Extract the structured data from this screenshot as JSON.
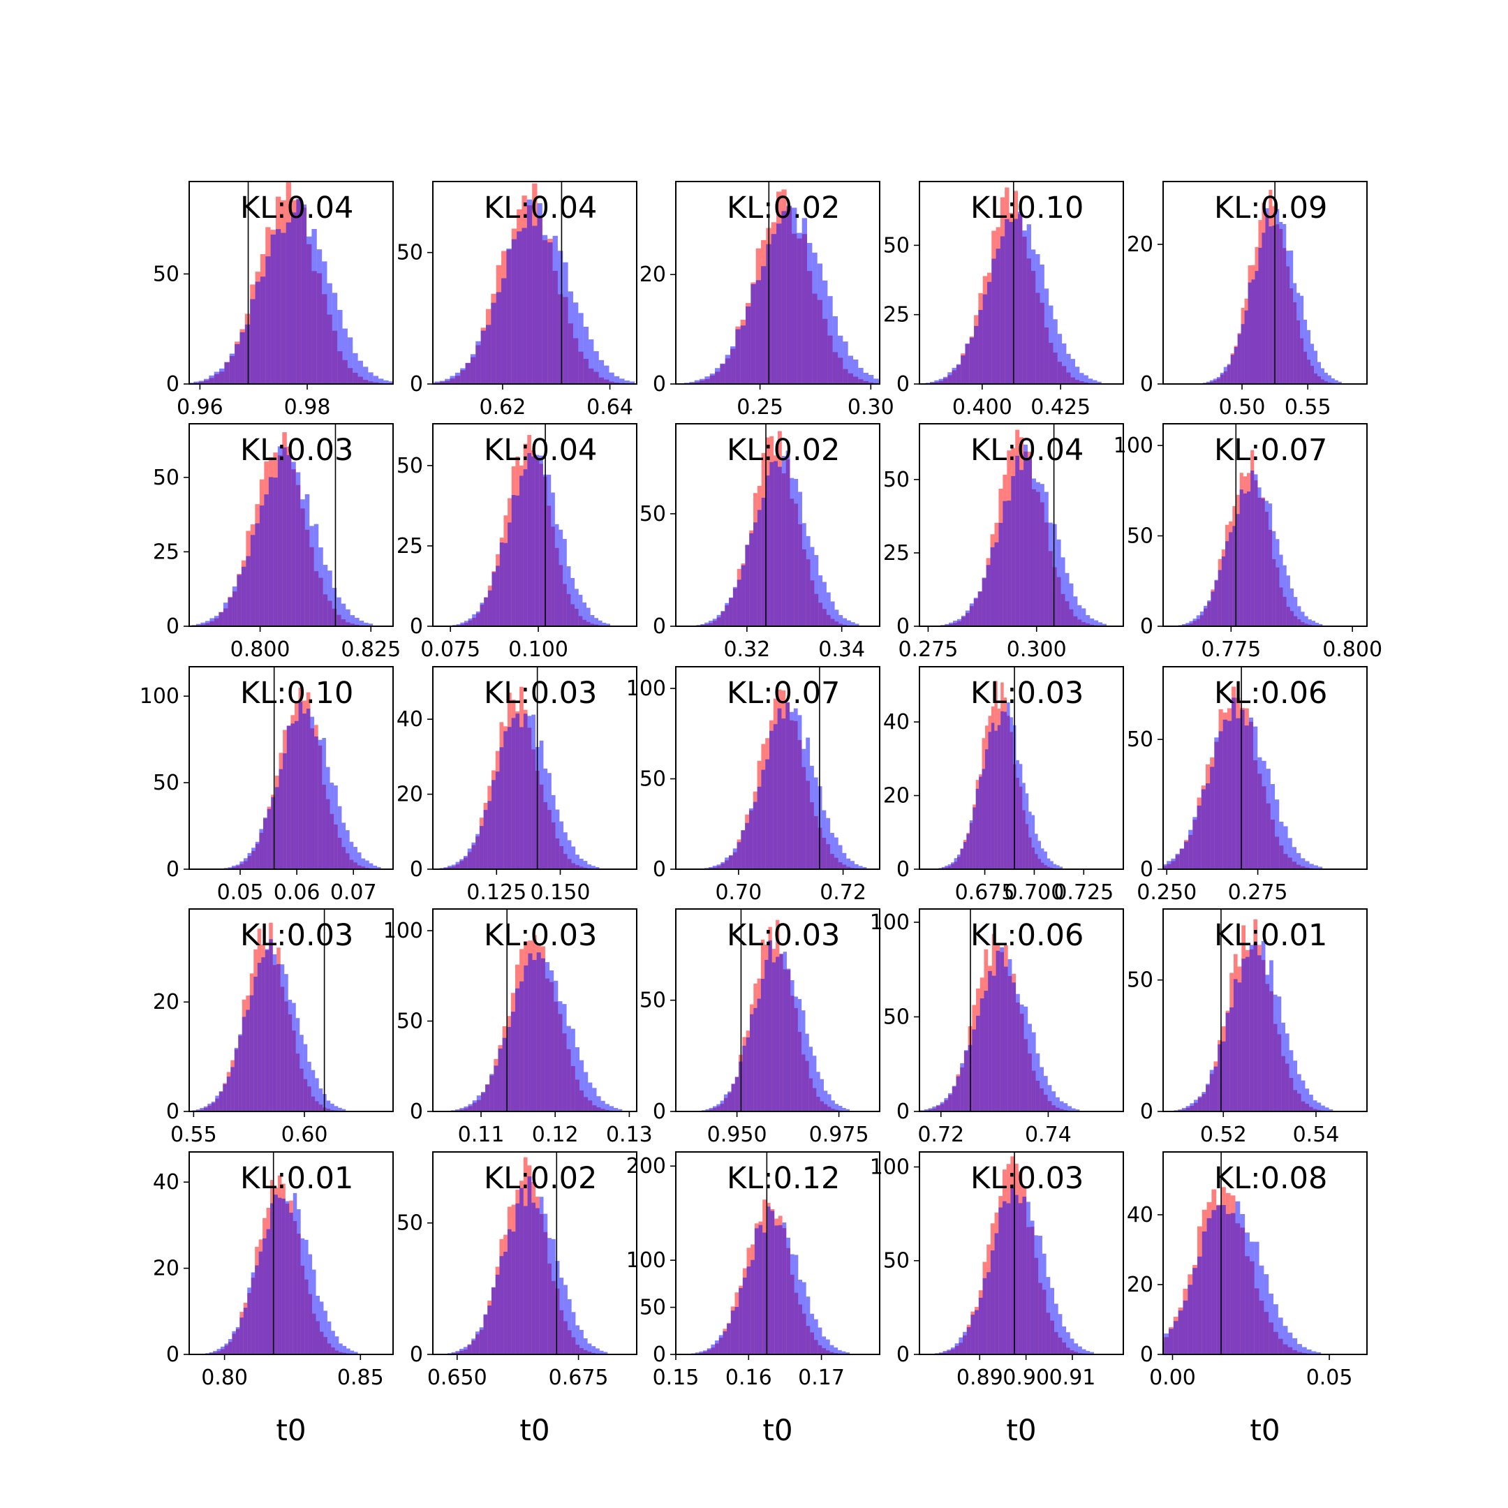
{
  "chart_data": {
    "type": "histogram-grid",
    "rows": 5,
    "cols": 5,
    "series": [
      {
        "name": "",
        "color": "#ff0000",
        "alpha": 0.5
      },
      {
        "name": "",
        "color": "#0000ff",
        "alpha": 0.5
      }
    ],
    "overlap_color": "#7f3fbf",
    "xlabel": "t0",
    "panels": [
      {
        "kl": "KL:0.04",
        "xrange": [
          0.958,
          0.996
        ],
        "yrange": [
          0,
          92
        ],
        "xticks": [
          0.96,
          0.98
        ],
        "xtick_labels": [
          "0.96",
          "0.98"
        ],
        "yticks": [
          0,
          50
        ],
        "ytick_labels": [
          "0",
          "50"
        ],
        "vline": 0.969,
        "center": 0.977,
        "sd": 0.0058,
        "peak": 85
      },
      {
        "kl": "KL:0.04",
        "xrange": [
          0.607,
          0.645
        ],
        "yrange": [
          0,
          77
        ],
        "xticks": [
          0.62,
          0.64
        ],
        "xtick_labels": [
          "0.62",
          "0.64"
        ],
        "yticks": [
          0,
          50
        ],
        "ytick_labels": [
          "0",
          "50"
        ],
        "vline": 0.631,
        "center": 0.6255,
        "sd": 0.0058,
        "peak": 70
      },
      {
        "kl": "KL:0.02",
        "xrange": [
          0.212,
          0.304
        ],
        "yrange": [
          0,
          37
        ],
        "xticks": [
          0.25,
          0.3
        ],
        "xtick_labels": [
          "0.25",
          "0.30"
        ],
        "yticks": [
          0,
          20
        ],
        "ytick_labels": [
          "0",
          "20"
        ],
        "vline": 0.254,
        "center": 0.262,
        "sd": 0.014,
        "peak": 33
      },
      {
        "kl": "KL:0.10",
        "xrange": [
          0.38,
          0.445
        ],
        "yrange": [
          0,
          73
        ],
        "xticks": [
          0.4,
          0.425
        ],
        "xtick_labels": [
          "0.400",
          "0.425"
        ],
        "yticks": [
          0,
          25,
          50
        ],
        "ytick_labels": [
          "0",
          "25",
          "50"
        ],
        "vline": 0.41,
        "center": 0.41,
        "sd": 0.0085,
        "peak": 64
      },
      {
        "kl": "KL:0.09",
        "xrange": [
          0.44,
          0.595
        ],
        "yrange": [
          0,
          29
        ],
        "xticks": [
          0.5,
          0.55
        ],
        "xtick_labels": [
          "0.50",
          "0.55"
        ],
        "yticks": [
          0,
          20
        ],
        "ytick_labels": [
          "0",
          "20"
        ],
        "vline": 0.525,
        "center": 0.523,
        "sd": 0.016,
        "peak": 26
      },
      {
        "kl": "KL:0.03",
        "xrange": [
          0.784,
          0.83
        ],
        "yrange": [
          0,
          68
        ],
        "xticks": [
          0.8,
          0.825
        ],
        "xtick_labels": [
          "0.800",
          "0.825"
        ],
        "yticks": [
          0,
          25,
          50
        ],
        "ytick_labels": [
          "0",
          "25",
          "50"
        ],
        "vline": 0.817,
        "center": 0.805,
        "sd": 0.0062,
        "peak": 60
      },
      {
        "kl": "KL:0.04",
        "xrange": [
          0.07,
          0.128
        ],
        "yrange": [
          0,
          63
        ],
        "xticks": [
          0.075,
          0.1
        ],
        "xtick_labels": [
          "0.075",
          "0.100"
        ],
        "yticks": [
          0,
          25,
          50
        ],
        "ytick_labels": [
          "0",
          "25",
          "50"
        ],
        "vline": 0.102,
        "center": 0.098,
        "sd": 0.0068,
        "peak": 56
      },
      {
        "kl": "KL:0.02",
        "xrange": [
          0.305,
          0.348
        ],
        "yrange": [
          0,
          90
        ],
        "xticks": [
          0.32,
          0.34
        ],
        "xtick_labels": [
          "0.32",
          "0.34"
        ],
        "yticks": [
          0,
          50
        ],
        "ytick_labels": [
          "0",
          "50"
        ],
        "vline": 0.324,
        "center": 0.3265,
        "sd": 0.0052,
        "peak": 80
      },
      {
        "kl": "KL:0.04",
        "xrange": [
          0.273,
          0.32
        ],
        "yrange": [
          0,
          69
        ],
        "xticks": [
          0.275,
          0.3
        ],
        "xtick_labels": [
          "0.275",
          "0.300"
        ],
        "yticks": [
          0,
          25,
          50
        ],
        "ytick_labels": [
          "0",
          "25",
          "50"
        ],
        "vline": 0.304,
        "center": 0.297,
        "sd": 0.0058,
        "peak": 61
      },
      {
        "kl": "KL:0.07",
        "xrange": [
          0.761,
          0.803
        ],
        "yrange": [
          0,
          112
        ],
        "xticks": [
          0.775,
          0.8
        ],
        "xtick_labels": [
          "0.775",
          "0.800"
        ],
        "yticks": [
          0,
          50,
          100
        ],
        "ytick_labels": [
          "0",
          "50",
          "100"
        ],
        "vline": 0.776,
        "center": 0.779,
        "sd": 0.0045,
        "peak": 90
      },
      {
        "kl": "KL:0.10",
        "xrange": [
          0.041,
          0.077
        ],
        "yrange": [
          0,
          117
        ],
        "xticks": [
          0.05,
          0.06,
          0.07
        ],
        "xtick_labels": [
          "0.05",
          "0.06",
          "0.07"
        ],
        "yticks": [
          0,
          50,
          100
        ],
        "ytick_labels": [
          "0",
          "50",
          "100"
        ],
        "vline": 0.056,
        "center": 0.061,
        "sd": 0.0042,
        "peak": 100
      },
      {
        "kl": "KL:0.03",
        "xrange": [
          0.1,
          0.18
        ],
        "yrange": [
          0,
          54
        ],
        "xticks": [
          0.125,
          0.15
        ],
        "xtick_labels": [
          "0.125",
          "0.150"
        ],
        "yticks": [
          0,
          20,
          40
        ],
        "ytick_labels": [
          "0",
          "20",
          "40"
        ],
        "vline": 0.141,
        "center": 0.134,
        "sd": 0.0095,
        "peak": 45
      },
      {
        "kl": "KL:0.07",
        "xrange": [
          0.688,
          0.727
        ],
        "yrange": [
          0,
          112
        ],
        "xticks": [
          0.7,
          0.72
        ],
        "xtick_labels": [
          "0.70",
          "0.72"
        ],
        "yticks": [
          0,
          50,
          100
        ],
        "ytick_labels": [
          "0",
          "50",
          "100"
        ],
        "vline": 0.7155,
        "center": 0.709,
        "sd": 0.0047,
        "peak": 95
      },
      {
        "kl": "KL:0.03",
        "xrange": [
          0.642,
          0.745
        ],
        "yrange": [
          0,
          55
        ],
        "xticks": [
          0.675,
          0.7,
          0.725
        ],
        "xtick_labels": [
          "0.675",
          "0.700",
          "0.725"
        ],
        "yticks": [
          0,
          20,
          40
        ],
        "ytick_labels": [
          "0",
          "20",
          "40"
        ],
        "vline": 0.69,
        "center": 0.683,
        "sd": 0.0095,
        "peak": 47
      },
      {
        "kl": "KL:0.06",
        "xrange": [
          0.249,
          0.305
        ],
        "yrange": [
          0,
          78
        ],
        "xticks": [
          0.25,
          0.275
        ],
        "xtick_labels": [
          "0.250",
          "0.275"
        ],
        "yticks": [
          0,
          50
        ],
        "ytick_labels": [
          "0",
          "50"
        ],
        "vline": 0.2705,
        "center": 0.269,
        "sd": 0.0072,
        "peak": 68
      },
      {
        "kl": "KL:0.03",
        "xrange": [
          0.548,
          0.64
        ],
        "yrange": [
          0,
          37
        ],
        "xticks": [
          0.55,
          0.6
        ],
        "xtick_labels": [
          "0.55",
          "0.60"
        ],
        "yticks": [
          0,
          20
        ],
        "ytick_labels": [
          "0",
          "20"
        ],
        "vline": 0.609,
        "center": 0.584,
        "sd": 0.0105,
        "peak": 32
      },
      {
        "kl": "KL:0.03",
        "xrange": [
          0.1035,
          0.131
        ],
        "yrange": [
          0,
          112
        ],
        "xticks": [
          0.11,
          0.12,
          0.13
        ],
        "xtick_labels": [
          "0.11",
          "0.12",
          "0.13"
        ],
        "yticks": [
          0,
          50,
          100
        ],
        "ytick_labels": [
          "0",
          "50",
          "100"
        ],
        "vline": 0.1135,
        "center": 0.1175,
        "sd": 0.0035,
        "peak": 95
      },
      {
        "kl": "KL:0.03",
        "xrange": [
          0.935,
          0.985
        ],
        "yrange": [
          0,
          91
        ],
        "xticks": [
          0.95,
          0.975
        ],
        "xtick_labels": [
          "0.950",
          "0.975"
        ],
        "yticks": [
          0,
          50
        ],
        "ytick_labels": [
          "0",
          "50"
        ],
        "vline": 0.951,
        "center": 0.9595,
        "sd": 0.0055,
        "peak": 80
      },
      {
        "kl": "KL:0.06",
        "xrange": [
          0.716,
          0.754
        ],
        "yrange": [
          0,
          107
        ],
        "xticks": [
          0.72,
          0.74
        ],
        "xtick_labels": [
          "0.72",
          "0.74"
        ],
        "yticks": [
          0,
          50,
          100
        ],
        "ytick_labels": [
          "0",
          "50",
          "100"
        ],
        "vline": 0.7255,
        "center": 0.731,
        "sd": 0.0045,
        "peak": 87
      },
      {
        "kl": "KL:0.01",
        "xrange": [
          0.507,
          0.551
        ],
        "yrange": [
          0,
          77
        ],
        "xticks": [
          0.52,
          0.54
        ],
        "xtick_labels": [
          "0.52",
          "0.54"
        ],
        "yticks": [
          0,
          50
        ],
        "ytick_labels": [
          "0",
          "50"
        ],
        "vline": 0.5195,
        "center": 0.5265,
        "sd": 0.0052,
        "peak": 68
      },
      {
        "kl": "KL:0.01",
        "xrange": [
          0.787,
          0.862
        ],
        "yrange": [
          0,
          47
        ],
        "xticks": [
          0.8,
          0.85
        ],
        "xtick_labels": [
          "0.80",
          "0.85"
        ],
        "yticks": [
          0,
          20,
          40
        ],
        "ytick_labels": [
          "0",
          "20",
          "40"
        ],
        "vline": 0.818,
        "center": 0.821,
        "sd": 0.0085,
        "peak": 41
      },
      {
        "kl": "KL:0.02",
        "xrange": [
          0.645,
          0.687
        ],
        "yrange": [
          0,
          77
        ],
        "xticks": [
          0.65,
          0.675
        ],
        "xtick_labels": [
          "0.650",
          "0.675"
        ],
        "yticks": [
          0,
          50
        ],
        "ytick_labels": [
          "0",
          "50"
        ],
        "vline": 0.6705,
        "center": 0.6645,
        "sd": 0.005,
        "peak": 67
      },
      {
        "kl": "KL:0.12",
        "xrange": [
          0.15,
          0.178
        ],
        "yrange": [
          0,
          215
        ],
        "xticks": [
          0.15,
          0.16,
          0.17
        ],
        "xtick_labels": [
          "0.15",
          "0.16",
          "0.17"
        ],
        "yticks": [
          0,
          50,
          100,
          200
        ],
        "ytick_labels": [
          "0",
          "50",
          "100",
          "200"
        ],
        "vline": 0.1625,
        "center": 0.163,
        "sd": 0.0033,
        "peak": 160
      },
      {
        "kl": "KL:0.03",
        "xrange": [
          0.877,
          0.921
        ],
        "yrange": [
          0,
          108
        ],
        "xticks": [
          0.89,
          0.9,
          0.91
        ],
        "xtick_labels": [
          "0.89",
          "0.90",
          "0.91"
        ],
        "yticks": [
          0,
          50,
          100
        ],
        "ytick_labels": [
          "0",
          "50",
          "100"
        ],
        "vline": 0.8975,
        "center": 0.8975,
        "sd": 0.0052,
        "peak": 95
      },
      {
        "kl": "KL:0.08",
        "xrange": [
          -0.003,
          0.062
        ],
        "yrange": [
          0,
          58
        ],
        "xticks": [
          0.0,
          0.05
        ],
        "xtick_labels": [
          "0.00",
          "0.05"
        ],
        "yticks": [
          0,
          20,
          40
        ],
        "ytick_labels": [
          "0",
          "20",
          "40"
        ],
        "vline": 0.0155,
        "center": 0.017,
        "sd": 0.0092,
        "peak": 48
      }
    ]
  }
}
